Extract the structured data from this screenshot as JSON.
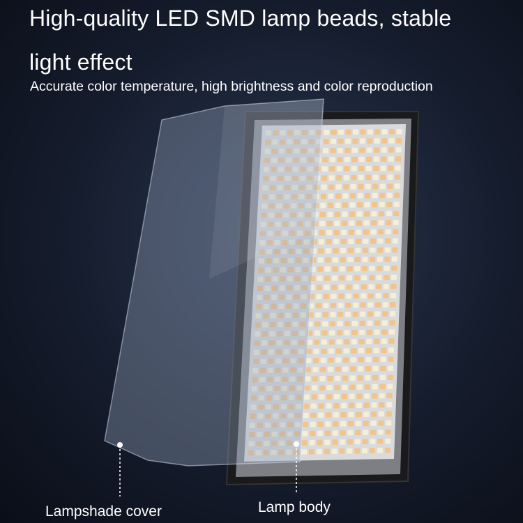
{
  "headline": {
    "line1": "High-quality LED SMD lamp beads, stable",
    "line2": "light effect",
    "subtitle": "Accurate color temperature, high brightness and color reproduction"
  },
  "callouts": [
    {
      "label": "Lampshade cover"
    },
    {
      "label": "Lamp body"
    }
  ],
  "colors": {
    "background": "#151c2c",
    "text": "#ffffff",
    "led_warm": "#f2c48a",
    "led_cool": "#f4efd8",
    "frame": "#1a1a1c"
  }
}
